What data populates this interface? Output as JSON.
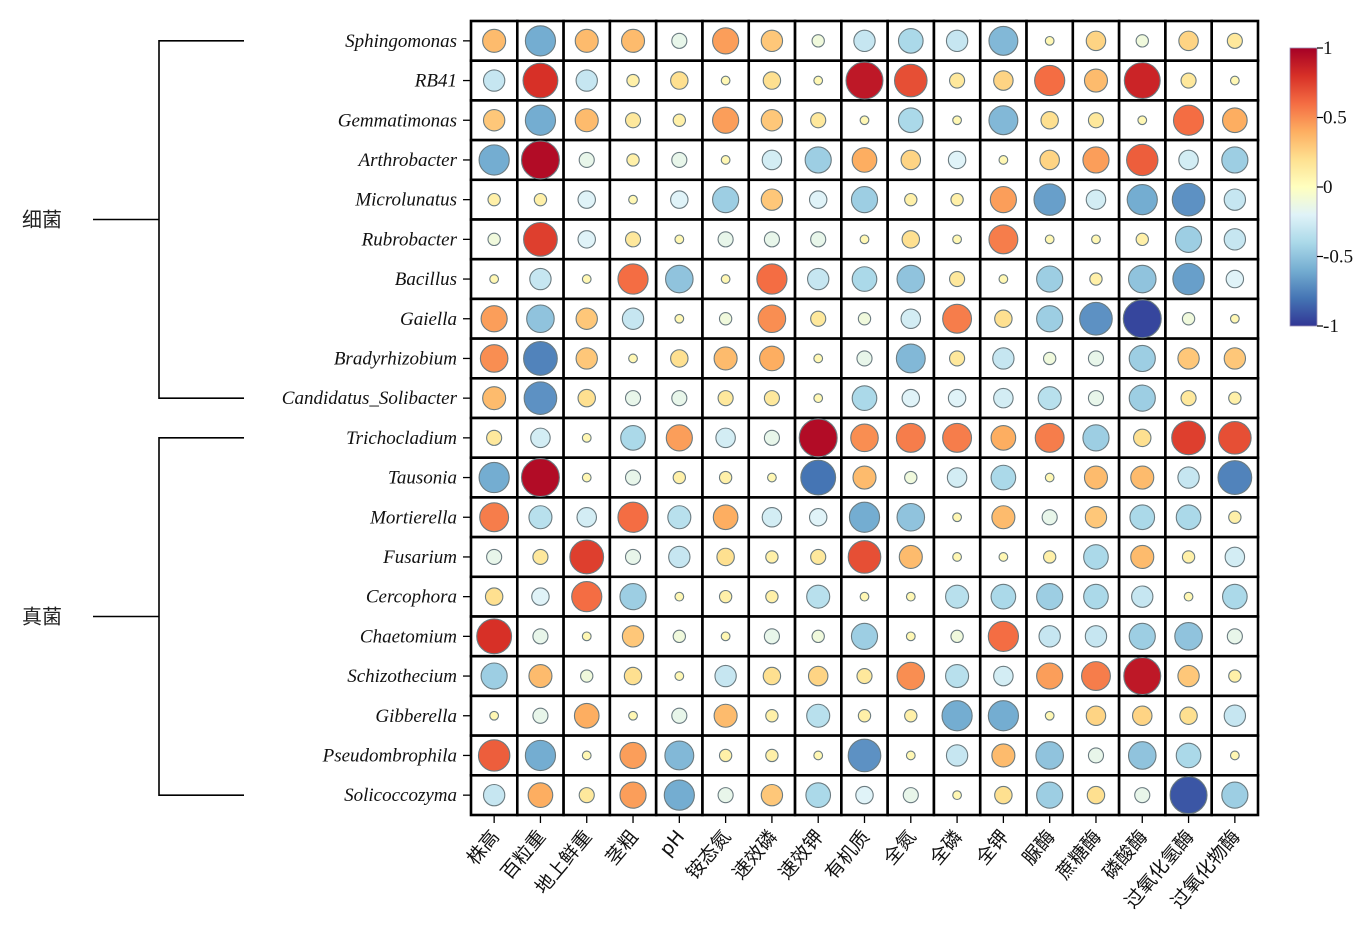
{
  "chart_data": {
    "type": "heatmap",
    "subtype": "correlation-circle",
    "title": "",
    "xlabel": "",
    "ylabel": "",
    "columns": [
      "株高",
      "百粒重",
      "地上鲜重",
      "茎粗",
      "pH",
      "铵态氮",
      "速效磷",
      "速效钾",
      "有机质",
      "全氮",
      "全磷",
      "全钾",
      "脲酶",
      "蔗糖酶",
      "磷酸酶",
      "过氧化氢酶",
      "过氧化物酶"
    ],
    "rows": [
      "Sphingomonas",
      "RB41",
      "Gemmatimonas",
      "Arthrobacter",
      "Microlunatus",
      "Rubrobacter",
      "Bacillus",
      "Gaiella",
      "Bradyrhizobium",
      "Candidatus_Solibacter",
      "Trichocladium",
      "Tausonia",
      "Mortierella",
      "Fusarium",
      "Cercophora",
      "Chaetomium",
      "Schizothecium",
      "Gibberella",
      "Pseudombrophila",
      "Solicoccozyma"
    ],
    "groups": [
      {
        "label": "细菌",
        "rows_from": "Sphingomonas",
        "rows_to": "Candidatus_Solibacter"
      },
      {
        "label": "真菌",
        "rows_from": "Trichocladium",
        "rows_to": "Solicoccozyma"
      }
    ],
    "values": [
      [
        0.35,
        -0.6,
        0.35,
        0.35,
        -0.15,
        0.45,
        0.3,
        -0.1,
        -0.3,
        -0.4,
        -0.3,
        -0.55,
        0.05,
        0.25,
        -0.1,
        0.25,
        0.15
      ],
      [
        -0.3,
        0.8,
        -0.3,
        0.1,
        0.2,
        0.05,
        0.2,
        0.05,
        0.9,
        0.7,
        0.15,
        0.25,
        0.6,
        0.35,
        0.85,
        0.15,
        0.05
      ],
      [
        0.3,
        -0.6,
        0.35,
        0.15,
        0.1,
        0.45,
        0.3,
        0.15,
        0.05,
        -0.4,
        0.05,
        -0.55,
        0.2,
        0.15,
        0.05,
        0.6,
        0.4
      ],
      [
        -0.6,
        0.95,
        -0.15,
        0.1,
        -0.15,
        0.05,
        -0.25,
        -0.45,
        0.4,
        0.25,
        -0.2,
        0.05,
        0.25,
        0.45,
        0.65,
        -0.25,
        -0.45
      ],
      [
        0.1,
        0.1,
        -0.2,
        0.05,
        -0.2,
        -0.45,
        0.3,
        -0.2,
        -0.45,
        0.1,
        0.1,
        0.45,
        -0.65,
        -0.25,
        -0.6,
        -0.7,
        -0.3
      ],
      [
        -0.1,
        0.75,
        -0.2,
        0.15,
        0.05,
        -0.15,
        -0.15,
        -0.15,
        0.05,
        0.2,
        0.05,
        0.55,
        0.05,
        0.05,
        0.1,
        -0.45,
        -0.3
      ],
      [
        0.05,
        -0.3,
        0.05,
        0.6,
        -0.5,
        0.05,
        0.6,
        -0.3,
        -0.4,
        -0.5,
        0.15,
        0.05,
        -0.45,
        0.1,
        -0.5,
        -0.65,
        -0.2
      ],
      [
        0.45,
        -0.5,
        0.3,
        -0.3,
        0.05,
        -0.1,
        0.5,
        0.15,
        -0.1,
        -0.25,
        0.55,
        0.2,
        -0.45,
        -0.7,
        -0.95,
        -0.1,
        0.05
      ],
      [
        0.5,
        -0.75,
        0.3,
        0.05,
        0.2,
        0.35,
        0.4,
        0.05,
        -0.15,
        -0.55,
        0.15,
        -0.3,
        -0.1,
        -0.15,
        -0.45,
        0.3,
        0.3
      ],
      [
        0.35,
        -0.7,
        0.2,
        -0.15,
        -0.15,
        0.15,
        0.15,
        0.05,
        -0.4,
        -0.2,
        -0.2,
        -0.25,
        -0.35,
        -0.15,
        -0.45,
        0.15,
        0.1
      ],
      [
        0.15,
        -0.25,
        0.05,
        -0.4,
        0.45,
        -0.25,
        -0.15,
        0.95,
        0.5,
        0.55,
        0.55,
        0.4,
        0.55,
        -0.45,
        0.2,
        0.75,
        0.7
      ],
      [
        -0.6,
        0.95,
        0.05,
        -0.15,
        0.1,
        0.1,
        0.05,
        -0.8,
        0.35,
        -0.1,
        -0.25,
        -0.4,
        0.05,
        0.35,
        0.35,
        -0.3,
        -0.75
      ],
      [
        0.55,
        -0.35,
        -0.25,
        0.6,
        -0.35,
        0.4,
        -0.25,
        -0.2,
        -0.6,
        -0.5,
        0.05,
        0.35,
        -0.15,
        0.3,
        -0.4,
        -0.4,
        0.1
      ],
      [
        -0.15,
        0.15,
        0.75,
        -0.15,
        -0.3,
        0.2,
        0.1,
        0.15,
        0.7,
        0.35,
        0.05,
        0.05,
        0.1,
        -0.4,
        0.35,
        0.1,
        -0.25
      ],
      [
        0.2,
        -0.2,
        0.6,
        -0.45,
        0.05,
        0.1,
        0.1,
        -0.35,
        0.05,
        0.05,
        -0.35,
        -0.4,
        -0.45,
        -0.4,
        -0.3,
        0.05,
        -0.4
      ],
      [
        0.8,
        -0.15,
        0.05,
        0.3,
        -0.1,
        0.05,
        -0.15,
        -0.1,
        -0.45,
        0.05,
        -0.1,
        0.6,
        -0.3,
        -0.3,
        -0.45,
        -0.5,
        -0.15
      ],
      [
        -0.45,
        0.35,
        -0.1,
        0.2,
        0.05,
        -0.3,
        0.2,
        0.25,
        0.15,
        0.5,
        -0.35,
        -0.25,
        0.45,
        0.55,
        0.9,
        0.3,
        0.1
      ],
      [
        0.05,
        -0.15,
        0.4,
        0.05,
        -0.15,
        0.35,
        0.1,
        -0.35,
        0.1,
        0.1,
        -0.6,
        -0.6,
        0.05,
        0.25,
        0.25,
        0.2,
        -0.3
      ],
      [
        0.65,
        -0.6,
        0.05,
        0.45,
        -0.55,
        0.1,
        0.1,
        0.05,
        -0.7,
        0.05,
        -0.3,
        0.35,
        -0.5,
        -0.15,
        -0.5,
        -0.4,
        0.05
      ],
      [
        -0.3,
        0.4,
        0.15,
        0.45,
        -0.6,
        -0.15,
        0.3,
        -0.4,
        -0.2,
        -0.15,
        0.05,
        0.2,
        -0.45,
        0.2,
        -0.15,
        -0.9,
        -0.45
      ]
    ],
    "colorbar": {
      "ticks": [
        1,
        0.5,
        0,
        -0.5,
        -1
      ],
      "tick_labels": [
        "1",
        "0.5",
        "0",
        "-0.5",
        "-1"
      ],
      "range": [
        -1,
        1
      ],
      "colormap": "RdYlBu_r",
      "stops": [
        "#313695",
        "#4575b4",
        "#74add1",
        "#abd9e9",
        "#e0f3f8",
        "#ffffbf",
        "#fee090",
        "#fdae61",
        "#f46d43",
        "#d73027",
        "#a50026"
      ]
    },
    "grid": true,
    "legend_position": "right"
  }
}
